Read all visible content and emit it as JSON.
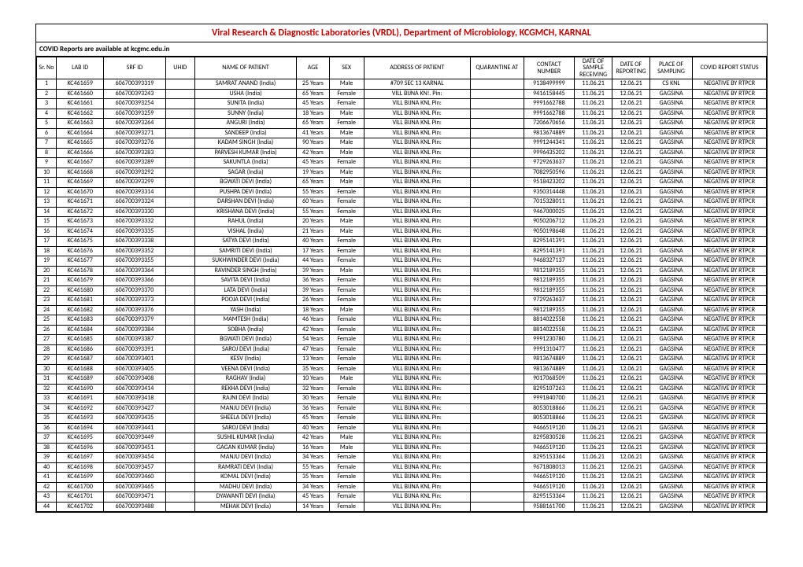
{
  "title": "Viral Research & Diagnostic Laboratories (VRDL), Department of Microbiology, KCGMCH, KARNAL",
  "subtitle": "COVID Reports are available at kcgmc.edu.in",
  "title_color": "#c00000",
  "columns": [
    "Sr. No",
    "LAB ID",
    "SRF ID",
    "UHID",
    "NAME OF PATIENT",
    "AGE",
    "SEX",
    "ADDRESS OF PATIENT",
    "QUARANTINE AT",
    "CONTACT NUMBER",
    "DATE OF SAMPLE RECEIVING",
    "DATE OF REPORTING",
    "PLACE OF SAMPLING",
    "COVID REPORT STATUS"
  ],
  "rows": [
    [
      "1",
      "KC461659",
      "606700393319",
      "",
      "SAMRAT ANAND (India)",
      "25 Years",
      "Male",
      "#709 SEC 13 KARNAL",
      "",
      "9138499999",
      "11.06.21",
      "12.06.21",
      "CS KNL",
      "NEGATIVE BY RTPCR"
    ],
    [
      "2",
      "KC461660",
      "606700393243",
      "",
      "USHA (India)",
      "65 Years",
      "Female",
      "VILL BIJNA KN!. Pin:",
      "",
      "9416158445",
      "11.06.21",
      "12.06.21",
      "GAGSINA",
      "NEGATIVE BY RTPCR"
    ],
    [
      "3",
      "KC461661",
      "606700393254",
      "",
      "SUNITA (India)",
      "45 Years",
      "Female",
      "VILL BIJNA KNL Pin:",
      "",
      "9991662788",
      "11.06.21",
      "12.06.21",
      "GAGSINA",
      "NEGATIVE BY RTPCR"
    ],
    [
      "4",
      "KC461662",
      "606700393259",
      "",
      "SUNNY (India)",
      "18 Years",
      "Male",
      "VILL BIJNA KNL Pin:",
      "",
      "9991662788",
      "11.06.21",
      "12.06.21",
      "GAGSINA",
      "NEGATIVE BY RTPCR"
    ],
    [
      "5",
      "KC461663",
      "606700393264",
      "",
      "ANGURI (India)",
      "65 Years",
      "Female",
      "VILL BIJNA KNL Pin:",
      "",
      "7206670656",
      "11.06.21",
      "12.06.21",
      "GAGSINA",
      "NEGATIVE BY RTPCR"
    ],
    [
      "6",
      "KC461664",
      "606700393271",
      "",
      "SANDEEP (India)",
      "41 Years",
      "Male",
      "VILL BIJNA KNL Pin:",
      "",
      "9813674889",
      "11.06.21",
      "12.06.21",
      "GAGSINA",
      "NEGATIVE BY RTPCR"
    ],
    [
      "7",
      "KC461665",
      "606700393276",
      "",
      "KADAM SINGH (India)",
      "90 Years",
      "Male",
      "VILL BIJNA KNL Pin:",
      "",
      "9991244341",
      "11.06.21",
      "12.06.21",
      "GAGSINA",
      "NEGATIVE BY RTPCR"
    ],
    [
      "8",
      "KC461666",
      "606700393283",
      "",
      "PARVESH KUMAR (India)",
      "42 Years",
      "Male",
      "VILL BIJNA KNL Pin:",
      "",
      "9996435202",
      "11.06.21",
      "12.06.21",
      "GAGSINA",
      "NEGATIVE BY RTPCR"
    ],
    [
      "9",
      "KC461667",
      "606700393289",
      "",
      "SAKUNTLA (India)",
      "45 Years",
      "Female",
      "VILL BIJNA KNL Pin:",
      "",
      "9729263637",
      "11.06.21",
      "12.06.21",
      "GAGSINA",
      "NEGATIVE BY RTPCR"
    ],
    [
      "10",
      "KC461668",
      "606700393292",
      "",
      "SAGAR (India)",
      "19 Years",
      "Male",
      "VILL BIJNA KNL Pin:",
      "",
      "7082950596",
      "11.06.21",
      "12.06.21",
      "GAGSINA",
      "NEGATIVE BY RTPCR"
    ],
    [
      "11",
      "KC461669",
      "606700393299",
      "",
      "BGWATI DEVI (India)",
      "65 Years",
      "Male",
      "VILL BIJNA KNL Pin:",
      "",
      "9518423202",
      "11.06.21",
      "12.06.21",
      "GAGSINA",
      "NEGATIVE BY RTPCR"
    ],
    [
      "12",
      "KC461670",
      "606700393314",
      "",
      "PUSHPA DEVI (India)",
      "55 Years",
      "Female",
      "VILL BIJNA KNL Pin:",
      "",
      "9350314448",
      "11.06.21",
      "12.06.21",
      "GAGSINA",
      "NEGATIVE BY RTPCR"
    ],
    [
      "13",
      "KC461671",
      "606700393324",
      "",
      "DARSHAN DEVI (India)",
      "60 Years",
      "Female",
      "VILL BIJNA KNL Pin:",
      "",
      "7015328011",
      "11.06.21",
      "12.06.21",
      "GAGSINA",
      "NEGATIVE BY RTPCR"
    ],
    [
      "14",
      "KC461672",
      "606700393330",
      "",
      "KRISHANA DEVI (India)",
      "55 Years",
      "Female",
      "VILL BIJNA KNL Pin:",
      "",
      "9467000025",
      "11.06.21",
      "12.06.21",
      "GAGSINA",
      "NEGATIVE BY RTPCR"
    ],
    [
      "15",
      "KC461673",
      "606700393332",
      "",
      "RAHUL (India)",
      "20 Years",
      "Male",
      "VILL BIJNA KNL Pin:",
      "",
      "9050206712",
      "11.06.21",
      "12.06.21",
      "GAGSINA",
      "NEGATIVE BY RTPCR"
    ],
    [
      "16",
      "KC461674",
      "606700393335",
      "",
      "VISHAL (India)",
      "21 Years",
      "Male",
      "VILL BIJNA KNL Pin:",
      "",
      "9050198648",
      "11.06.21",
      "12.06.21",
      "GAGSINA",
      "NEGATIVE BY RTPCR"
    ],
    [
      "17",
      "KC461675",
      "606700393338",
      "",
      "SATYA DEVI (India)",
      "40 Years",
      "Female",
      "VILL BIJNA KNL Pin:",
      "",
      "8295141391",
      "11.06.21",
      "12.06.21",
      "GAGSINA",
      "NEGATIVE BY RTPCR"
    ],
    [
      "18",
      "KC461676",
      "606700393352",
      "",
      "SAMRITI DEVI (India)",
      "17 Years",
      "Female",
      "VILL BIJNA KNL Pin:",
      "",
      "8295141391",
      "11.06.21",
      "12.06.21",
      "GAGSINA",
      "NEGATIVE BY RTPCR"
    ],
    [
      "19",
      "KC461677",
      "606700393355",
      "",
      "SUKHWINDER DEVI (India)",
      "44 Years",
      "Female",
      "VILL BIJNA KNL Pin:",
      "",
      "9468327137",
      "11.06.21",
      "12.06.21",
      "GAGSINA",
      "NEGATIVE BY RTPCR"
    ],
    [
      "20",
      "KC461678",
      "606700393364",
      "",
      "RAVINDER SINGH (India)",
      "39 Years",
      "Male",
      "VILL BIJNA KNL Pin:",
      "",
      "9812189355",
      "11.06.21",
      "12.06.21",
      "GAGSINA",
      "NEGATIVE BY RTPCR"
    ],
    [
      "21",
      "KC461679",
      "606700393366",
      "",
      "SAVITA DEVI (India)",
      "36 Years",
      "Female",
      "VILL BIJNA KNL Pin:",
      "",
      "9812189355",
      "11.06.21",
      "12.06.21",
      "GAGSINA",
      "NEGATIVE BY RTPCR"
    ],
    [
      "22",
      "KC461680",
      "606700393370",
      "",
      "LATA DEVI (India)",
      "39 Years",
      "Female",
      "VILL BIJNA KNL Pin:",
      "",
      "9812189355",
      "11.06.21",
      "12.06.21",
      "GAGSINA",
      "NEGATIVE BY RTPCR"
    ],
    [
      "23",
      "KC461681",
      "606700393373",
      "",
      "POOJA DEVI (India)",
      "26 Years",
      "Female",
      "VILL BIJNA KNL Pin:",
      "",
      "9729263637",
      "11.06.21",
      "12.06.21",
      "GAGSINA",
      "NEGATIVE BY RTPCR"
    ],
    [
      "24",
      "KC461682",
      "606700393376",
      "",
      "YASH (India)",
      "18 Years",
      "Male",
      "VILL BIJNA KNL Pin:",
      "",
      "9812189355",
      "11.06.21",
      "12.06.21",
      "GAGSINA",
      "NEGATIVE BY RTPCR"
    ],
    [
      "25",
      "KC461683",
      "606700393379",
      "",
      "MAMTESH (India)",
      "46 Years",
      "Female",
      "VILL BIJNA KNL Pin:",
      "",
      "8814022558",
      "11.06.21",
      "12.06.21",
      "GAGSINA",
      "NEGATIVE BY RTPCR"
    ],
    [
      "26",
      "KC461684",
      "606700393384",
      "",
      "SOBHA (India)",
      "42 Years",
      "Female",
      "VILL BIJNA KNL Pin:",
      "",
      "8814022558",
      "11.06.21",
      "12.06.21",
      "GAGSINA",
      "NEGATIVE BY RTPCR"
    ],
    [
      "27",
      "KC461685",
      "606700393387",
      "",
      "BGWATI DEVI (India)",
      "54 Years",
      "Female",
      "VILL BIJNA KNL Pin:",
      "",
      "9991230780",
      "11.06.21",
      "12.06.21",
      "GAGSINA",
      "NEGATIVE BY RTPCR"
    ],
    [
      "28",
      "KC461686",
      "606700393391",
      "",
      "SAROJ DEVI (India)",
      "47 Years",
      "Female",
      "VILL BIJNA KNL Pin:",
      "",
      "9991310477",
      "11.06.21",
      "12.06.21",
      "GAGSINA",
      "NEGATIVE BY RTPCR"
    ],
    [
      "29",
      "KC461687",
      "606700393401",
      "",
      "KESV (India)",
      "13 Years",
      "Female",
      "VILL BIJNA KNL Pin:",
      "",
      "9813674889",
      "11.06.21",
      "12.06.21",
      "GAGSINA",
      "NEGATIVE BY RTPCR"
    ],
    [
      "30",
      "KC461688",
      "606700393405",
      "",
      "VEENA DEVI (India)",
      "35 Years",
      "Female",
      "VILL BIJNA KNL Pin:",
      "",
      "9813674889",
      "11.06.21",
      "12.06.21",
      "GAGSINA",
      "NEGATIVE BY RTPCR"
    ],
    [
      "31",
      "KC461689",
      "606700393408",
      "",
      "RAGHAV (India)",
      "10 Years",
      "Male",
      "VILL BIJNA KNL Pin:",
      "",
      "9017068509",
      "11.06.21",
      "12.06.21",
      "GAGSINA",
      "NEGATIVE BY RTPCR"
    ],
    [
      "32",
      "KC461690",
      "606700393414",
      "",
      "REKHA DEVI (India)",
      "32 Years",
      "Female",
      "VILL BIJNA KNL Pin:",
      "",
      "8295107263",
      "11.06.21",
      "12.06.21",
      "GAGSINA",
      "NEGATIVE BY RTPCR"
    ],
    [
      "33",
      "KC461691",
      "606700393418",
      "",
      "RAJNI DEVI (India)",
      "30 Years",
      "Female",
      "VILL BIJNA KNL Pin:",
      "",
      "9991840700",
      "11.06.21",
      "12.06.21",
      "GAGSINA",
      "NEGATIVE BY RTPCR"
    ],
    [
      "34",
      "KC461692",
      "606700393427",
      "",
      "MANJU DEVI (India)",
      "36 Years",
      "Female",
      "VILL BIJNA KNL Pin:",
      "",
      "8053018866",
      "11.06.21",
      "12.06.21",
      "GAGSINA",
      "NEGATIVE BY RTPCR"
    ],
    [
      "35",
      "KC461693",
      "606700393435",
      "",
      "SHEELA DEVI (India)",
      "45 Years",
      "Female",
      "VILL BIJNA KNL Pin:",
      "",
      "8053018866",
      "11.06.21",
      "12.06.21",
      "GAGSINA",
      "NEGATIVE BY RTPCR"
    ],
    [
      "36",
      "KC461694",
      "606700393441",
      "",
      "SAROJ DEVI (India)",
      "40 Years",
      "Female",
      "VILL BIJNA KNL Pin:",
      "",
      "9466519120",
      "11.06.21",
      "12.06.21",
      "GAGSINA",
      "NEGATIVE BY RTPCR"
    ],
    [
      "37",
      "KC461695",
      "606700393449",
      "",
      "SUSHIL KUMAR (India)",
      "42 Years",
      "Male",
      "VILL BIJNA KNL Pin:",
      "",
      "8295830528",
      "11.06.21",
      "12.06.21",
      "GAGSINA",
      "NEGATIVE BY RTPCR"
    ],
    [
      "38",
      "KC461696",
      "606700393451",
      "",
      "GAGAN KUMAR (India)",
      "16 Years",
      "Male",
      "VILL BIJNA KNL Pin:",
      "",
      "9466519120",
      "11.06.21",
      "12.06.21",
      "GAGSINA",
      "NEGATIVE BY RTPCR"
    ],
    [
      "39",
      "KC461697",
      "606700393454",
      "",
      "MANJU DEVI (India)",
      "34 Years",
      "Female",
      "VILL BIJNA KNL Pin:",
      "",
      "8295153364",
      "11.06.21",
      "12.06.21",
      "GAGSINA",
      "NEGATIVE BY RTPCR"
    ],
    [
      "40",
      "KC461698",
      "606700393457",
      "",
      "RAMRATI DEVI (India)",
      "55 Years",
      "Female",
      "VILL BIJNA KNL Pin:",
      "",
      "9671808013",
      "11.06.21",
      "12.06.21",
      "GAGSINA",
      "NEGATIVE BY RTPCR"
    ],
    [
      "41",
      "KC461699",
      "606700393460",
      "",
      "KOMAL DEVI (India)",
      "35 Years",
      "Female",
      "VILL BIJNA KNL Pin:",
      "",
      "9466519120",
      "11.06.21",
      "12.06.21",
      "GAGSINA",
      "NEGATIVE BY RTPCR"
    ],
    [
      "42",
      "KC461700",
      "606700393465",
      "",
      "MADHU DEVI (India)",
      "34 Years",
      "Female",
      "VILL BIJNA KNL Pin:",
      "",
      "9466519120",
      "11.06.21",
      "12.06.21",
      "GAGSINA",
      "NEGATIVE BY RTPCR"
    ],
    [
      "43",
      "KC461701",
      "606700393471",
      "",
      "DYAWANTI DEVI (India)",
      "45 Years",
      "Female",
      "VILL BIJNA KNL Pin:",
      "",
      "8295153364",
      "11.06.21",
      "12.06.21",
      "GAGSINA",
      "NEGATIVE BY RTPCR"
    ],
    [
      "44",
      "KC461702",
      "606700393488",
      "",
      "MEHAK DEVI (India)",
      "14 Years",
      "Female",
      "VILL BIJNA KNL Pin:",
      "",
      "9588161700",
      "11.06.21",
      "12.06.21",
      "GAGSINA",
      "NEGATIVE BY RTPCR"
    ]
  ]
}
